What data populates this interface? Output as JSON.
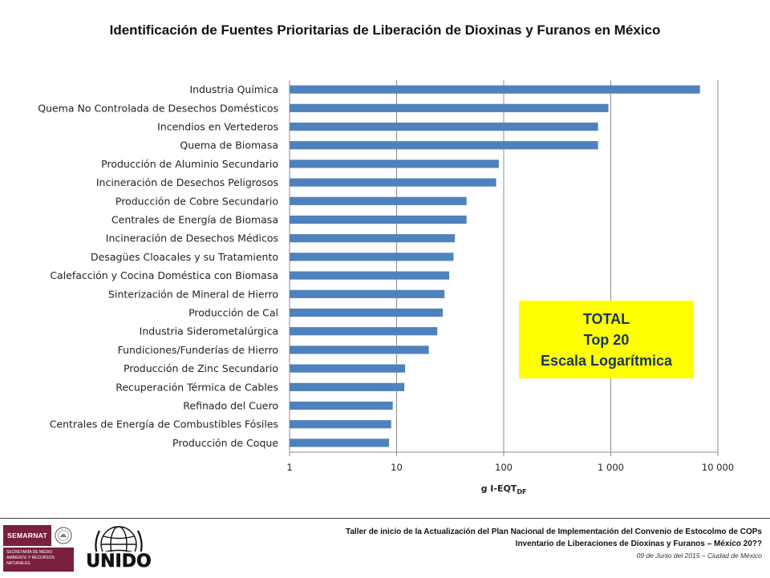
{
  "title": "Identificación de Fuentes Prioritarias de Liberación de Dioxinas y Furanos en México",
  "chart_data": {
    "type": "bar",
    "orientation": "horizontal",
    "scale": "log",
    "xlim": [
      1,
      10000
    ],
    "xticks": [
      1,
      10,
      100,
      1000,
      10000
    ],
    "xtick_labels": [
      "1",
      "10",
      "100",
      "1 000",
      "10 000"
    ],
    "xlabel": "g I-EQT",
    "xlabel_sub": "DF",
    "ylabel": "",
    "grid": "vertical",
    "bar_color": "#4f81bd",
    "categories": [
      "Industria Química",
      "Quema No Controlada de Desechos Domésticos",
      "Incendios en Vertederos",
      "Quema de Biomasa",
      "Producción de Aluminio Secundario",
      "Incineración de Desechos Peligrosos",
      "Producción de Cobre Secundario",
      "Centrales de Energía de Biomasa",
      "Incineración de Desechos Médicos",
      "Desagües Cloacales y su Tratamiento",
      "Calefacción y Cocina Doméstica con Biomasa",
      "Sinterización de Mineral de Hierro",
      "Producción de Cal",
      "Industria Siderometalúrgica",
      "Fundiciones/Funderías de Hierro",
      "Producción de Zinc Secundario",
      "Recuperación Térmica de Cables",
      "Refinado del Cuero",
      "Centrales de Energía de Combustibles Fósiles",
      "Producción de Coque"
    ],
    "values": [
      6800,
      950,
      760,
      760,
      90,
      85,
      45,
      45,
      35,
      34,
      31,
      28,
      27,
      24,
      20,
      12,
      11.8,
      9.2,
      8.9,
      8.5
    ]
  },
  "annotation": {
    "line1": "TOTAL",
    "line2": "Top 20",
    "line3": "Escala Logarítmica"
  },
  "footer": {
    "org_logo_text": "SEMARNAT",
    "org_subtext": "SECRETARÍA DE MEDIO AMBIENTE Y RECURSOS NATURALES",
    "unido_text": "UNIDO",
    "line1": "Taller de inicio de la Actualización  del Plan Nacional  de Implementación del Convenio de Estocolmo de COPs",
    "line2": "Inventario de Liberaciones de Dioxinas y Furanos – México  20??",
    "date": "09 de Junio del 2015 – Ciudad de México"
  }
}
